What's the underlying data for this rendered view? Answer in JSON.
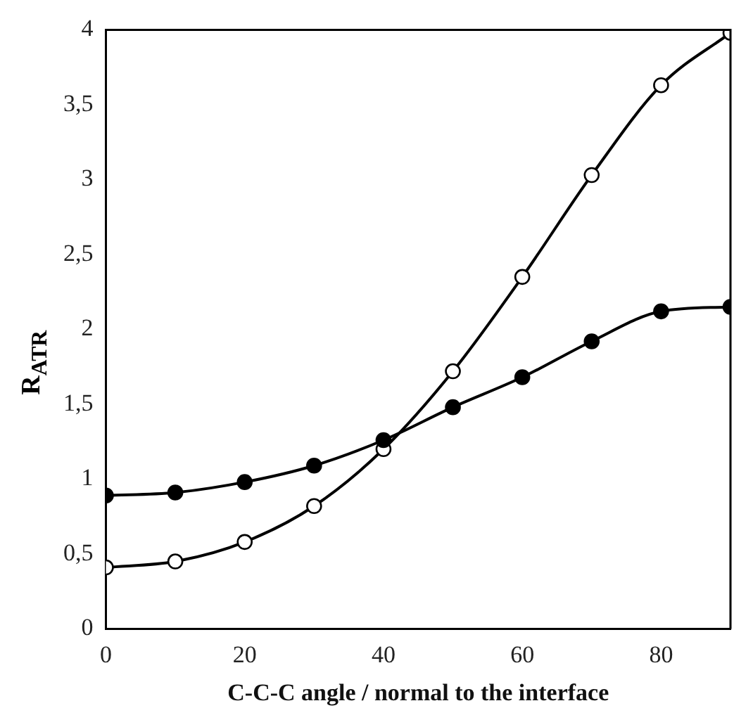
{
  "chart_data": {
    "type": "line",
    "xlabel": "C-C-C angle / normal to the interface",
    "ylabel": "R$_{ATR}$",
    "x": [
      0,
      10,
      20,
      30,
      40,
      50,
      60,
      70,
      80,
      90
    ],
    "series": [
      {
        "color": "#000000",
        "marker": "circle",
        "values": [
          0.89,
          0.91,
          0.98,
          1.09,
          1.26,
          1.48,
          1.68,
          1.92,
          2.12,
          2.15
        ]
      },
      {
        "color": "#000000",
        "marker": "circle",
        "values": [
          0.41,
          0.45,
          0.58,
          0.82,
          1.2,
          1.72,
          2.35,
          3.03,
          3.63,
          3.98
        ]
      }
    ],
    "xlim": [
      0,
      90
    ],
    "xticks": [
      0,
      20,
      40,
      60,
      80
    ],
    "ylim": [
      0,
      4
    ],
    "yticks": [
      0,
      {
        "value": 0.5,
        "label": "0,5"
      },
      1,
      {
        "value": 1.5,
        "label": "1,5"
      },
      2,
      {
        "value": 2.5,
        "label": "2,5"
      },
      3,
      {
        "value": 3.5,
        "label": "3,5"
      },
      4
    ],
    "grid": false,
    "legend": false,
    "line_style": "solid"
  }
}
